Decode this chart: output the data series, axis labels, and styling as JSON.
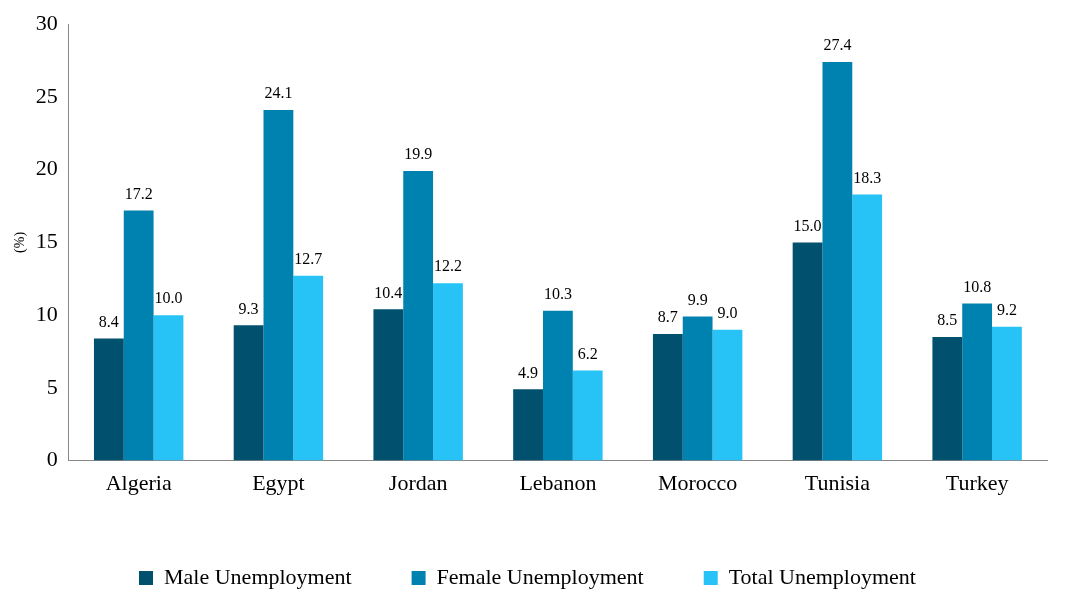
{
  "chart_data": {
    "type": "bar",
    "ylabel": "(%)",
    "categories": [
      "Algeria",
      "Egypt",
      "Jordan",
      "Lebanon",
      "Morocco",
      "Tunisia",
      "Turkey"
    ],
    "series": [
      {
        "name": "Male Unemployment",
        "color": "#00506e",
        "values": [
          8.4,
          9.3,
          10.4,
          4.9,
          8.7,
          15.0,
          8.5
        ],
        "value_labels": [
          "8.4",
          "9.3",
          "10.4",
          "4.9",
          "8.7",
          "15.0",
          "8.5"
        ]
      },
      {
        "name": "Female Unemployment",
        "color": "#0082b0",
        "values": [
          17.2,
          24.1,
          19.9,
          10.3,
          9.9,
          27.4,
          10.8
        ],
        "value_labels": [
          "17.2",
          "24.1",
          "19.9",
          "10.3",
          "9.9",
          "27.4",
          "10.8"
        ]
      },
      {
        "name": "Total Unemployment",
        "color": "#27c3f7",
        "values": [
          10.0,
          12.7,
          12.2,
          6.2,
          9.0,
          18.3,
          9.2
        ],
        "value_labels": [
          "10.0",
          "12.7",
          "12.2",
          "6.2",
          "9.0",
          "18.3",
          "9.2"
        ]
      }
    ],
    "ylim": [
      0,
      30
    ],
    "yticks": [
      0,
      5,
      10,
      15,
      20,
      25,
      30
    ],
    "grid": false,
    "legend": "bottom"
  }
}
